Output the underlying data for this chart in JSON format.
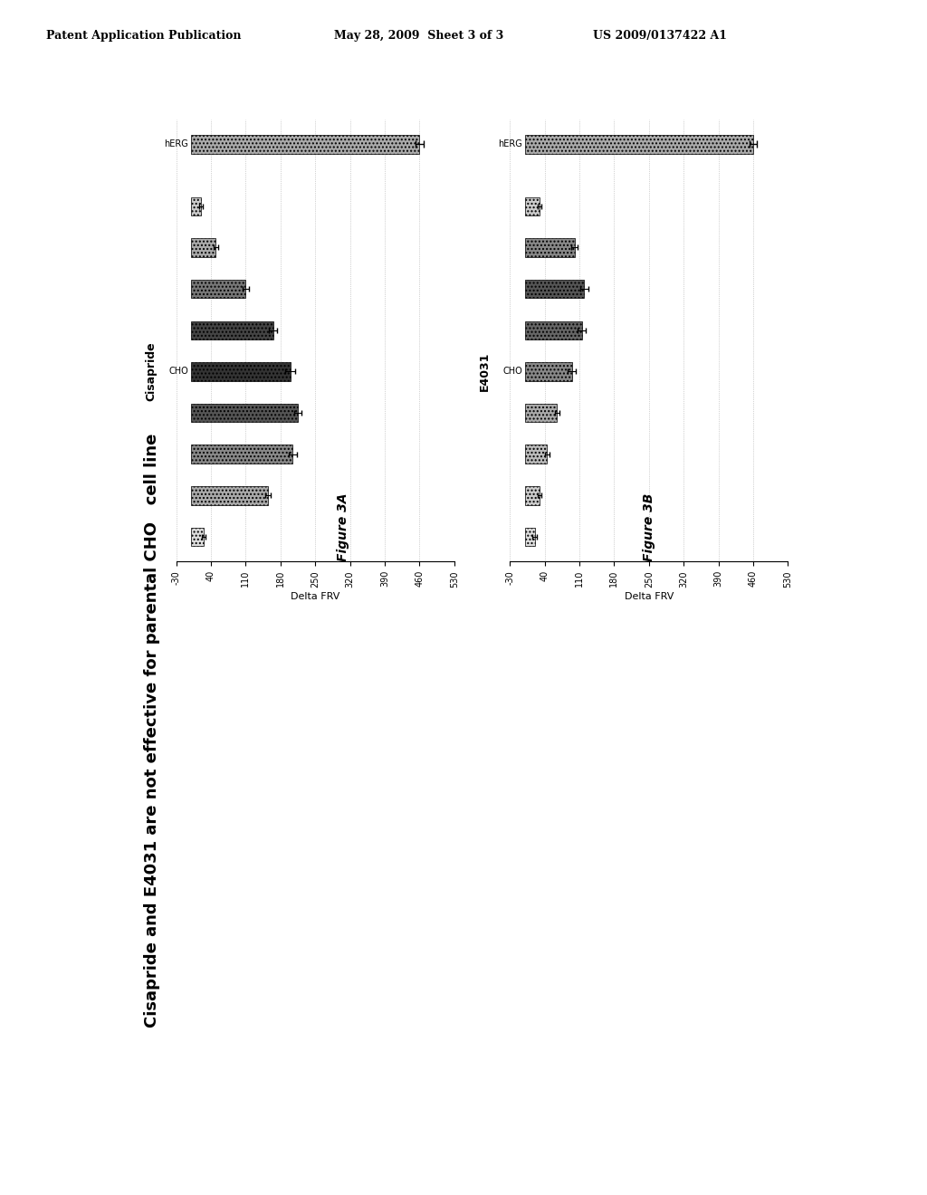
{
  "header_left": "Patent Application Publication",
  "header_mid": "May 28, 2009  Sheet 3 of 3",
  "header_right": "US 2009/0137422 A1",
  "main_title": "Cisapride and E4031 are not effective for parental CHO\ncell line",
  "fig3A_label": "Figure 3A",
  "fig3B_label": "Figure 3B",
  "drug_label_A": "Cisapride",
  "drug_label_B": "E4031",
  "ylabel": "Delta FRV",
  "ylim": [
    -30,
    530
  ],
  "yticks": [
    -30,
    40,
    110,
    180,
    250,
    320,
    390,
    460,
    530
  ],
  "hERG_val_A": 460,
  "hERG_err_A": 8,
  "CHO_vals_A": [
    25,
    155,
    205,
    215,
    200,
    165,
    110,
    50,
    20
  ],
  "CHO_errs_A": [
    4,
    6,
    8,
    8,
    10,
    8,
    6,
    5,
    4
  ],
  "hERG_val_B": 460,
  "hERG_err_B": 8,
  "CHO_vals_B": [
    20,
    30,
    45,
    65,
    95,
    115,
    120,
    100,
    30
  ],
  "CHO_errs_B": [
    4,
    4,
    4,
    5,
    8,
    8,
    8,
    6,
    4
  ],
  "herg_color": "#aaaaaa",
  "cho_colors_A": [
    "#dddddd",
    "#aaaaaa",
    "#888888",
    "#555555",
    "#333333",
    "#444444",
    "#777777",
    "#aaaaaa",
    "#cccccc"
  ],
  "cho_colors_B": [
    "#dddddd",
    "#cccccc",
    "#bbbbbb",
    "#aaaaaa",
    "#888888",
    "#666666",
    "#555555",
    "#888888",
    "#cccccc"
  ],
  "background": "#ffffff",
  "grid_color": "#aaaaaa",
  "hatch_pattern": "...."
}
